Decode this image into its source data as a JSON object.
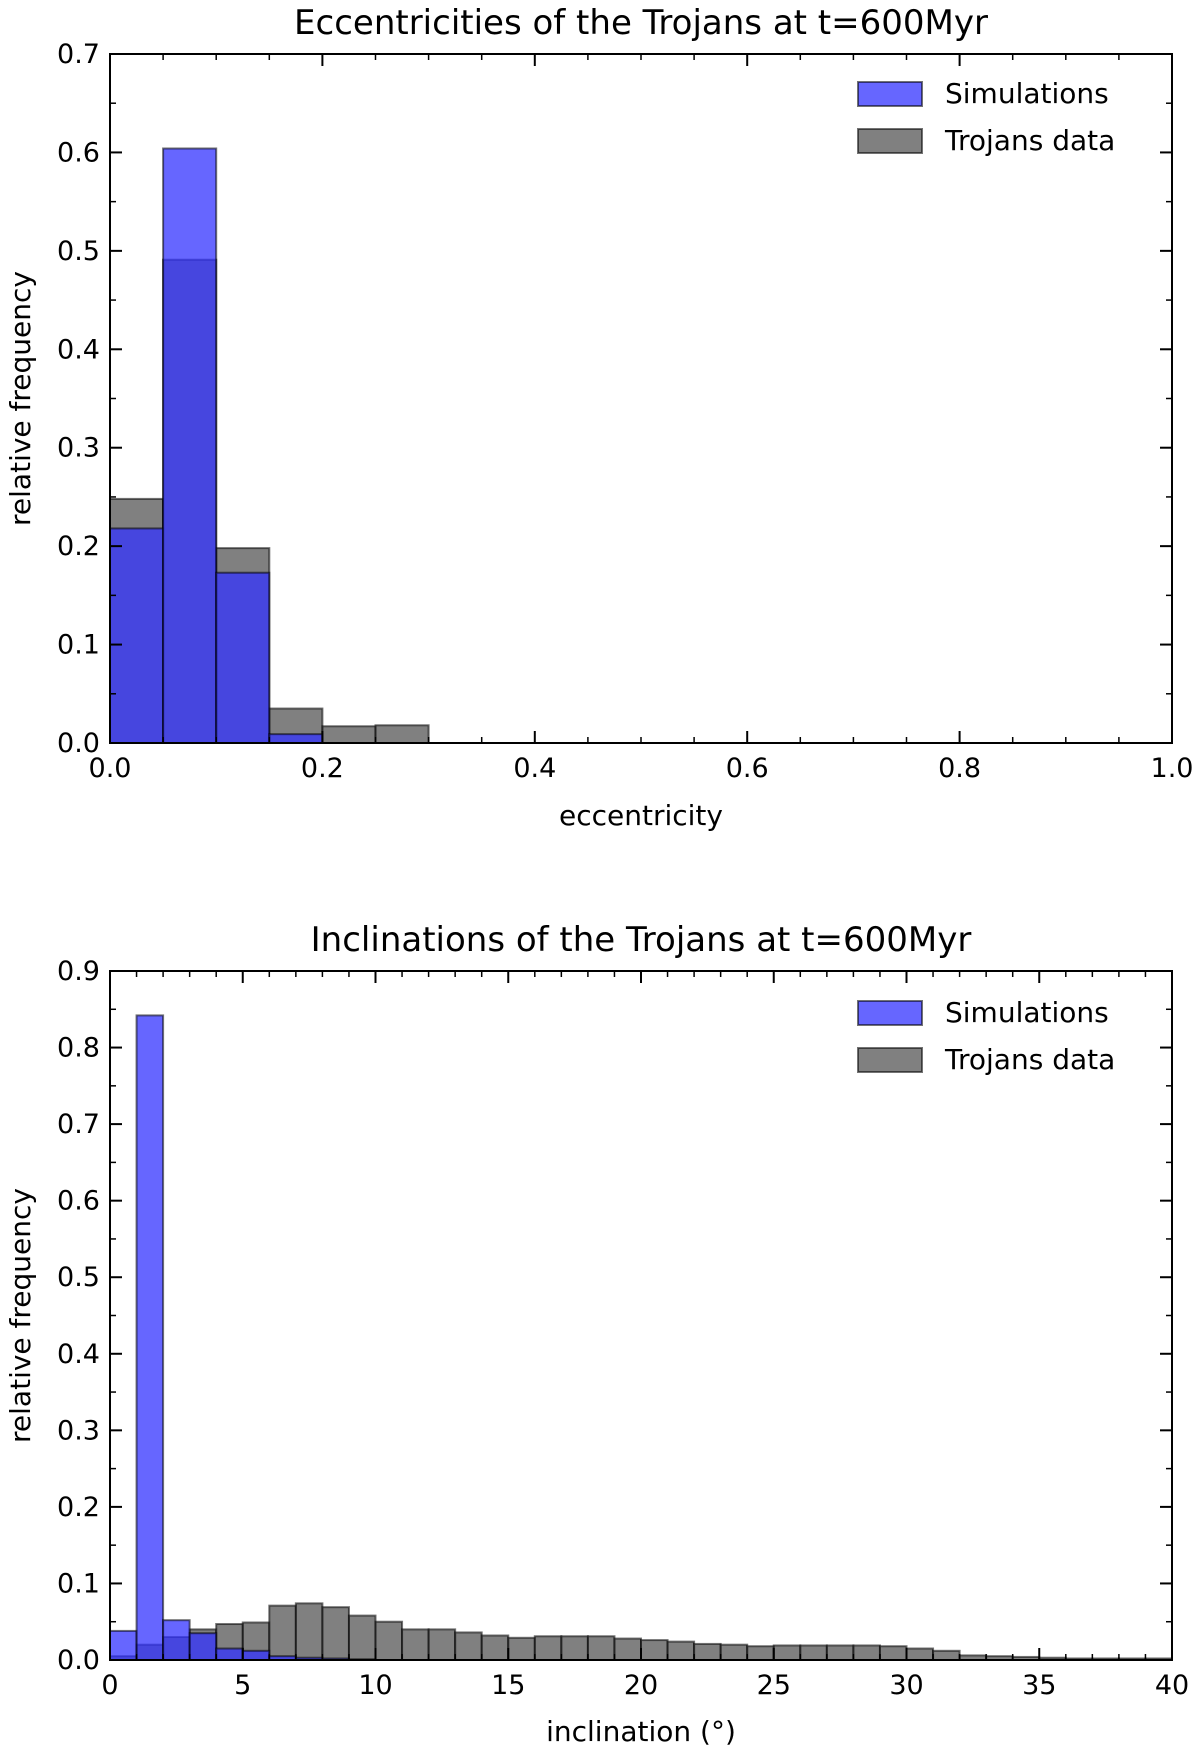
{
  "chart_data": [
    {
      "type": "bar",
      "title": "Eccentricities of the Trojans at t=600Myr",
      "xlabel": "eccentricity",
      "ylabel": "relative frequency",
      "xlim": [
        0.0,
        1.0
      ],
      "ylim": [
        0.0,
        0.7
      ],
      "xticks": [
        "0.0",
        "0.2",
        "0.4",
        "0.6",
        "0.8",
        "1.0"
      ],
      "yticks": [
        "0.0",
        "0.1",
        "0.2",
        "0.3",
        "0.4",
        "0.5",
        "0.6",
        "0.7"
      ],
      "bin_width": 0.05,
      "bin_starts": [
        0.0,
        0.05,
        0.1,
        0.15,
        0.2,
        0.25
      ],
      "legend_position": "top-right",
      "series": [
        {
          "name": "Simulations",
          "color": "#3333ff",
          "values": [
            0.218,
            0.604,
            0.173,
            0.009,
            0.0,
            0.0
          ]
        },
        {
          "name": "Trojans data",
          "color": "#555555",
          "values": [
            0.248,
            0.491,
            0.198,
            0.035,
            0.017,
            0.018
          ]
        }
      ]
    },
    {
      "type": "bar",
      "title": "Inclinations of the Trojans at t=600Myr",
      "xlabel": "inclination (°)",
      "ylabel": "relative frequency",
      "xlim": [
        0,
        40
      ],
      "ylim": [
        0.0,
        0.9
      ],
      "xticks": [
        "0",
        "5",
        "10",
        "15",
        "20",
        "25",
        "30",
        "35",
        "40"
      ],
      "yticks": [
        "0.0",
        "0.1",
        "0.2",
        "0.3",
        "0.4",
        "0.5",
        "0.6",
        "0.7",
        "0.8",
        "0.9"
      ],
      "bin_width": 1,
      "legend_position": "top-right",
      "series": [
        {
          "name": "Simulations",
          "color": "#3333ff",
          "values": [
            0.038,
            0.842,
            0.052,
            0.035,
            0.015,
            0.012,
            0.005,
            0.003,
            0.002,
            0.001
          ]
        },
        {
          "name": "Trojans data",
          "color": "#555555",
          "values": [
            0.005,
            0.02,
            0.03,
            0.04,
            0.047,
            0.049,
            0.071,
            0.074,
            0.069,
            0.058,
            0.05,
            0.04,
            0.04,
            0.036,
            0.032,
            0.029,
            0.031,
            0.031,
            0.031,
            0.028,
            0.026,
            0.024,
            0.021,
            0.02,
            0.018,
            0.019,
            0.019,
            0.019,
            0.019,
            0.018,
            0.015,
            0.012,
            0.006,
            0.005,
            0.004,
            0.003,
            0.002,
            0.002,
            0.002,
            0.002
          ]
        }
      ]
    }
  ]
}
